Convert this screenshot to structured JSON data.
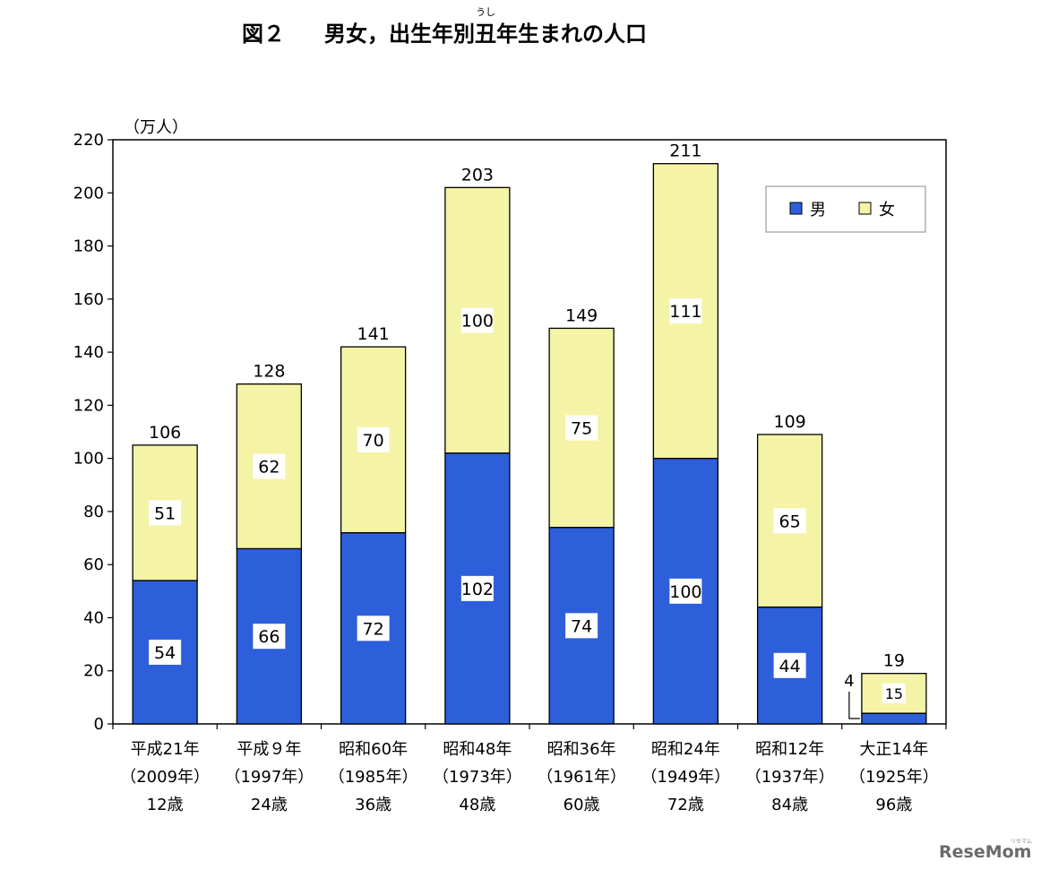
{
  "title": {
    "fig_label": "図２",
    "text_before": "男女，出生年別",
    "ruby_base": "丑",
    "ruby_reading": "うし",
    "text_after": "年生まれの人口"
  },
  "unit_label": "（万人）",
  "watermark": "ReseMom",
  "watermark_small": "リセマム",
  "colors": {
    "male": "#2e5fdb",
    "female": "#f5f3a6",
    "axis": "#000000"
  },
  "chart_data": {
    "type": "bar",
    "stacked": true,
    "ylim": [
      0,
      220
    ],
    "yticks": [
      0,
      20,
      40,
      60,
      80,
      100,
      120,
      140,
      160,
      180,
      200,
      220
    ],
    "ylabel": "（万人）",
    "grid": false,
    "legend_position": "top-right",
    "categories": [
      [
        "平成21年",
        "（2009年）",
        "12歳"
      ],
      [
        "平成９年",
        "（1997年）",
        "24歳"
      ],
      [
        "昭和60年",
        "（1985年）",
        "36歳"
      ],
      [
        "昭和48年",
        "（1973年）",
        "48歳"
      ],
      [
        "昭和36年",
        "（1961年）",
        "60歳"
      ],
      [
        "昭和24年",
        "（1949年）",
        "72歳"
      ],
      [
        "昭和12年",
        "（1937年）",
        "84歳"
      ],
      [
        "大正14年",
        "（1925年）",
        "96歳"
      ]
    ],
    "series": [
      {
        "name": "男",
        "values": [
          54,
          66,
          72,
          102,
          74,
          100,
          44,
          4
        ]
      },
      {
        "name": "女",
        "values": [
          51,
          62,
          70,
          100,
          75,
          111,
          65,
          15
        ]
      }
    ],
    "totals": [
      106,
      128,
      141,
      203,
      149,
      211,
      109,
      19
    ]
  }
}
